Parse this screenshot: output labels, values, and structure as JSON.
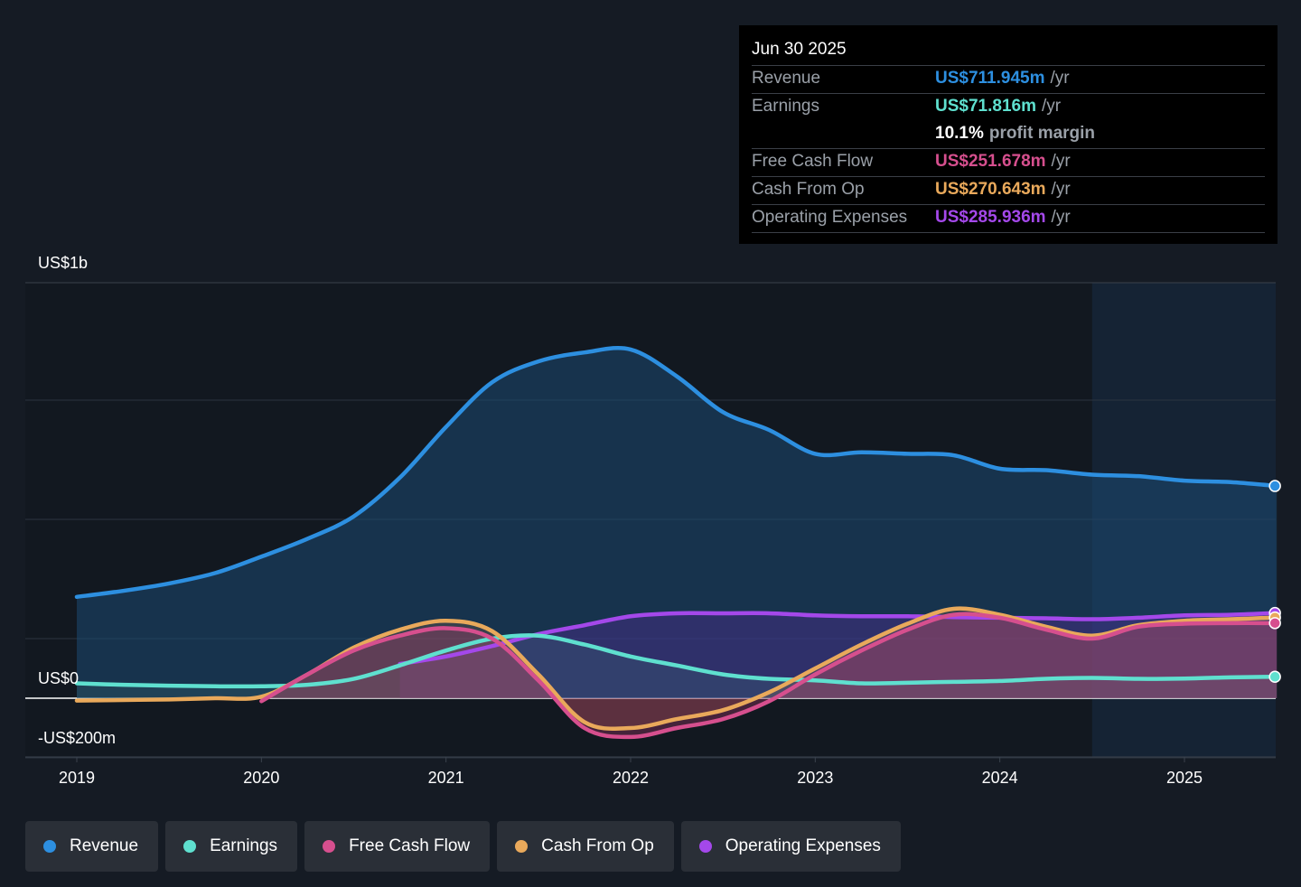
{
  "colors": {
    "revenue": "#2d8fe0",
    "earnings": "#5fe0cf",
    "free_cash_flow": "#d64f8e",
    "cash_from_op": "#e9a95b",
    "operating_expenses": "#a448ea"
  },
  "tooltip": {
    "date": "Jun 30 2025",
    "rows": [
      {
        "label": "Revenue",
        "value": "US$711.945m",
        "unit": "/yr"
      },
      {
        "label": "Earnings",
        "value": "US$71.816m",
        "unit": "/yr"
      },
      {
        "label": "",
        "value": "10.1%",
        "unit": "profit margin"
      },
      {
        "label": "Free Cash Flow",
        "value": "US$251.678m",
        "unit": "/yr"
      },
      {
        "label": "Cash From Op",
        "value": "US$270.643m",
        "unit": "/yr"
      },
      {
        "label": "Operating Expenses",
        "value": "US$285.936m",
        "unit": "/yr"
      }
    ]
  },
  "legend": [
    {
      "label": "Revenue",
      "icon": "revenue-dot-icon"
    },
    {
      "label": "Earnings",
      "icon": "earnings-dot-icon"
    },
    {
      "label": "Free Cash Flow",
      "icon": "free-cash-flow-dot-icon"
    },
    {
      "label": "Cash From Op",
      "icon": "cash-from-op-dot-icon"
    },
    {
      "label": "Operating Expenses",
      "icon": "operating-expenses-dot-icon"
    }
  ],
  "chart_data": {
    "type": "area",
    "title": "",
    "xlabel": "",
    "ylabel": "",
    "y_tick_labels": [
      "US$1b",
      "US$0",
      "-US$200m"
    ],
    "x_tick_labels": [
      "2019",
      "2020",
      "2021",
      "2022",
      "2023",
      "2024",
      "2025"
    ],
    "xlim": [
      2019.0,
      2025.5
    ],
    "ylim": [
      -200,
      1400
    ],
    "y_axis_label_values": [
      1000,
      0,
      -200
    ],
    "gridlines_at": [
      1000,
      600,
      200,
      0,
      -200
    ],
    "forecast_shade_start": 2024.5,
    "series": [
      {
        "name": "Revenue",
        "color_key": "revenue",
        "x": [
          2019.0,
          2019.25,
          2019.5,
          2019.75,
          2020.0,
          2020.25,
          2020.5,
          2020.75,
          2021.0,
          2021.25,
          2021.5,
          2021.75,
          2022.0,
          2022.25,
          2022.5,
          2022.75,
          2023.0,
          2023.25,
          2023.5,
          2023.75,
          2024.0,
          2024.25,
          2024.5,
          2024.75,
          2025.0,
          2025.25,
          2025.5
        ],
        "values": [
          340,
          360,
          385,
          420,
          475,
          535,
          610,
          740,
          910,
          1060,
          1130,
          1160,
          1170,
          1080,
          960,
          900,
          820,
          825,
          820,
          815,
          770,
          765,
          750,
          745,
          730,
          725,
          712
        ]
      },
      {
        "name": "Earnings",
        "color_key": "earnings",
        "x": [
          2019.0,
          2019.25,
          2019.5,
          2019.75,
          2020.0,
          2020.25,
          2020.5,
          2020.75,
          2021.0,
          2021.25,
          2021.5,
          2021.75,
          2022.0,
          2022.25,
          2022.5,
          2022.75,
          2023.0,
          2023.25,
          2023.5,
          2023.75,
          2024.0,
          2024.25,
          2024.5,
          2024.75,
          2025.0,
          2025.25,
          2025.5
        ],
        "values": [
          50,
          45,
          42,
          40,
          40,
          45,
          65,
          110,
          160,
          200,
          210,
          180,
          140,
          110,
          80,
          65,
          60,
          50,
          52,
          55,
          58,
          65,
          68,
          65,
          66,
          70,
          72
        ]
      },
      {
        "name": "Free Cash Flow",
        "color_key": "free_cash_flow",
        "x": [
          2020.0,
          2020.25,
          2020.5,
          2020.75,
          2021.0,
          2021.25,
          2021.5,
          2021.75,
          2022.0,
          2022.25,
          2022.5,
          2022.75,
          2023.0,
          2023.25,
          2023.5,
          2023.75,
          2024.0,
          2024.25,
          2024.5,
          2024.75,
          2025.0,
          2025.25,
          2025.5
        ],
        "values": [
          -10,
          80,
          160,
          210,
          235,
          200,
          60,
          -100,
          -130,
          -100,
          -70,
          -10,
          80,
          160,
          230,
          280,
          270,
          230,
          200,
          240,
          250,
          252,
          252
        ]
      },
      {
        "name": "Cash From Op",
        "color_key": "cash_from_op",
        "x": [
          2019.0,
          2019.25,
          2019.5,
          2019.75,
          2020.0,
          2020.25,
          2020.5,
          2020.75,
          2021.0,
          2021.25,
          2021.5,
          2021.75,
          2022.0,
          2022.25,
          2022.5,
          2022.75,
          2023.0,
          2023.25,
          2023.5,
          2023.75,
          2024.0,
          2024.25,
          2024.5,
          2024.75,
          2025.0,
          2025.25,
          2025.5
        ],
        "values": [
          -8,
          -6,
          -4,
          0,
          5,
          80,
          170,
          230,
          260,
          225,
          80,
          -80,
          -100,
          -70,
          -40,
          20,
          100,
          180,
          250,
          300,
          280,
          240,
          210,
          245,
          260,
          265,
          271
        ]
      },
      {
        "name": "Operating Expenses",
        "color_key": "operating_expenses",
        "x": [
          2020.75,
          2021.0,
          2021.25,
          2021.5,
          2021.75,
          2022.0,
          2022.25,
          2022.5,
          2022.75,
          2023.0,
          2023.25,
          2023.5,
          2023.75,
          2024.0,
          2024.25,
          2024.5,
          2024.75,
          2025.0,
          2025.25,
          2025.5
        ],
        "values": [
          115,
          140,
          175,
          215,
          245,
          275,
          285,
          285,
          285,
          278,
          275,
          275,
          272,
          270,
          268,
          265,
          270,
          278,
          280,
          286
        ]
      }
    ]
  }
}
